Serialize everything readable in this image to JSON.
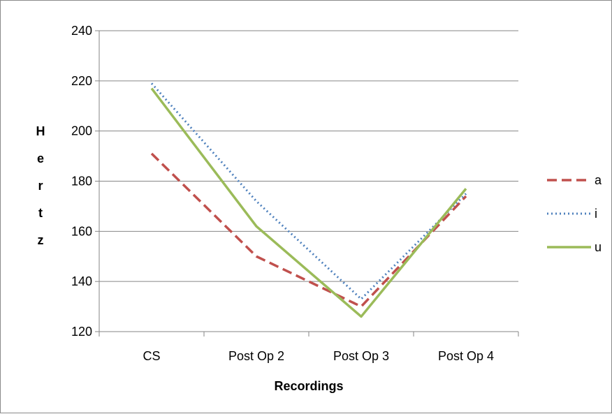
{
  "chart_data": {
    "type": "line",
    "categories": [
      "CS",
      "Post Op 2",
      "Post Op 3",
      "Post Op 4"
    ],
    "series": [
      {
        "name": "a",
        "values": [
          191,
          150,
          130,
          174
        ],
        "color": "#c0504d",
        "style": "dashed"
      },
      {
        "name": "i",
        "values": [
          219,
          172,
          133,
          175
        ],
        "color": "#4f81bd",
        "style": "dotted"
      },
      {
        "name": "u",
        "values": [
          217,
          162,
          126,
          177
        ],
        "color": "#9bbb59",
        "style": "solid"
      }
    ],
    "xlabel": "Recordings",
    "ylabel": "Hertz",
    "ylim": [
      120,
      240
    ],
    "yticks": [
      120,
      140,
      160,
      180,
      200,
      220,
      240
    ],
    "grid": true,
    "legend": "right"
  }
}
